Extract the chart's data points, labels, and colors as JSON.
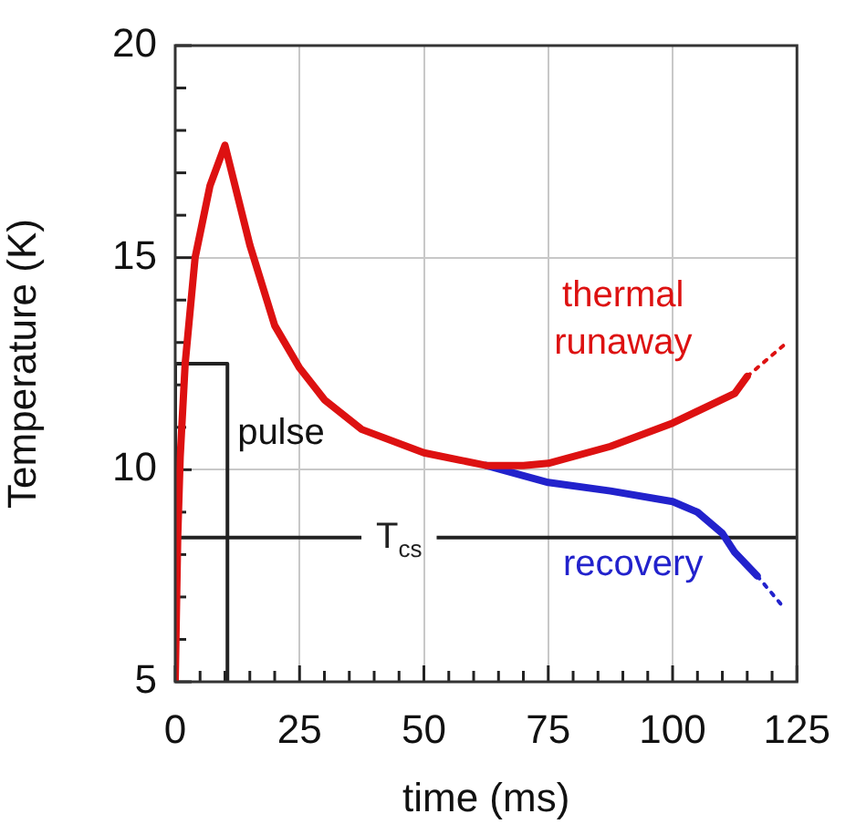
{
  "chart_data": {
    "type": "line",
    "xlabel": "time (ms)",
    "ylabel": "Temperature (K)",
    "xlim": [
      0,
      125
    ],
    "ylim": [
      5,
      20
    ],
    "xticks": [
      0,
      {
        "value": 5,
        "label": null
      },
      {
        "value": 10,
        "label": null
      },
      {
        "value": 15,
        "label": null
      },
      {
        "value": 20,
        "label": null
      },
      25,
      {
        "value": 30,
        "label": null
      },
      {
        "value": 35,
        "label": null
      },
      {
        "value": 40,
        "label": null
      },
      {
        "value": 45,
        "label": null
      },
      50,
      {
        "value": 55,
        "label": null
      },
      {
        "value": 60,
        "label": null
      },
      {
        "value": 65,
        "label": null
      },
      {
        "value": 70,
        "label": null
      },
      75,
      {
        "value": 80,
        "label": null
      },
      {
        "value": 85,
        "label": null
      },
      {
        "value": 90,
        "label": null
      },
      {
        "value": 95,
        "label": null
      },
      100,
      {
        "value": 105,
        "label": null
      },
      {
        "value": 110,
        "label": null
      },
      {
        "value": 115,
        "label": null
      },
      {
        "value": 120,
        "label": null
      },
      125
    ],
    "yticks": [
      5,
      {
        "value": 6,
        "label": null
      },
      {
        "value": 7,
        "label": null
      },
      {
        "value": 8,
        "label": null
      },
      {
        "value": 9,
        "label": null
      },
      10,
      {
        "value": 11,
        "label": null
      },
      {
        "value": 12,
        "label": null
      },
      {
        "value": 13,
        "label": null
      },
      {
        "value": 14,
        "label": null
      },
      15,
      {
        "value": 16,
        "label": null
      },
      {
        "value": 17,
        "label": null
      },
      {
        "value": 18,
        "label": null
      },
      {
        "value": 19,
        "label": null
      },
      20
    ],
    "grid": true,
    "legend": false,
    "marker": "none",
    "series": [
      {
        "color": "#222222",
        "x": [
          0,
          0,
          10.5,
          10.5
        ],
        "values": [
          5,
          12.5,
          12.5,
          5
        ]
      },
      {
        "name": "recovery",
        "color": "#2222cc",
        "x": [
          62.5,
          75,
          87.5,
          100,
          105,
          110,
          112.5,
          117
        ],
        "values": [
          10.1,
          9.7,
          9.5,
          9.25,
          9,
          8.5,
          8.05,
          7.5
        ]
      },
      {
        "color": "#2222cc",
        "line_style": "dotted",
        "x": [
          117,
          122
        ],
        "values": [
          7.5,
          6.8
        ]
      },
      {
        "name": "thermal runaway",
        "color": "#dd1111",
        "x": [
          0,
          0.5,
          1,
          2,
          4,
          7,
          10,
          15,
          20,
          25,
          30,
          37.5,
          50,
          62.5,
          70,
          75,
          87.5,
          100,
          112.5,
          115
        ],
        "values": [
          5,
          8.4,
          10.3,
          12.5,
          15,
          16.7,
          17.65,
          15.3,
          13.4,
          12.4,
          11.65,
          10.95,
          10.4,
          10.1,
          10.1,
          10.15,
          10.55,
          11.1,
          11.8,
          12.2
        ]
      },
      {
        "color": "#dd1111",
        "line_style": "dotted",
        "x": [
          115,
          122.5
        ],
        "values": [
          12.2,
          12.95
        ]
      }
    ],
    "ref_lines": [
      {
        "axis": "y",
        "value": 8.4,
        "label": "T$_{cs}$",
        "color": "#222222"
      }
    ],
    "annotations": [
      "pulse"
    ]
  }
}
